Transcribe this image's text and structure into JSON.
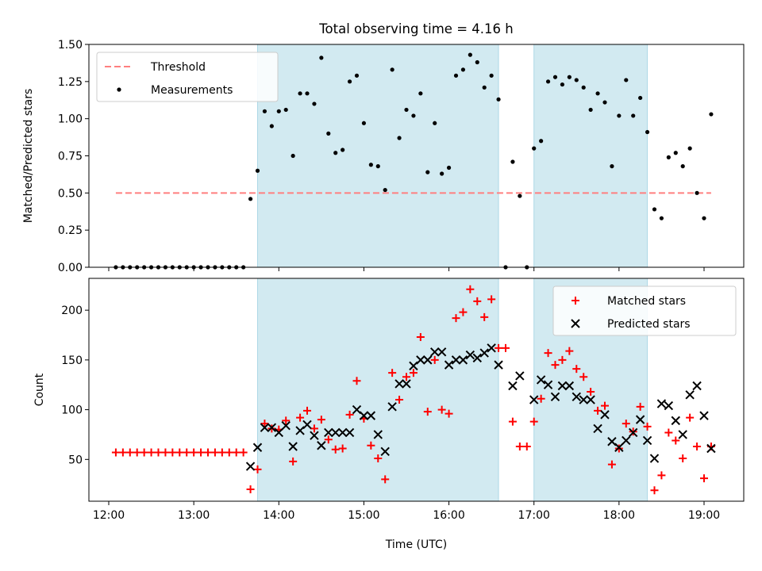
{
  "chart_data": [
    {
      "type": "scatter",
      "title": "Total observing time = 4.16 h",
      "ylabel": "Matched/Predicted stars",
      "xlabel": "",
      "xlim": [
        "11:46",
        "19:28"
      ],
      "ylim": [
        0,
        1.5
      ],
      "yticks": [
        "0.00",
        "0.25",
        "0.50",
        "0.75",
        "1.00",
        "1.25",
        "1.50"
      ],
      "yticks_values": [
        0,
        0.25,
        0.5,
        0.75,
        1.0,
        1.25,
        1.5
      ],
      "xticks": [
        "12:00",
        "13:00",
        "14:00",
        "15:00",
        "16:00",
        "17:00",
        "18:00",
        "19:00"
      ],
      "xticks_visible": false,
      "legend": "top-left",
      "shaded_intervals": [
        [
          "13:45",
          "16:35"
        ],
        [
          "17:00",
          "18:20"
        ]
      ],
      "shade_color": "#add8e6",
      "series": [
        {
          "name": "Threshold",
          "kind": "dashed-line",
          "color": "#ff7f7f",
          "x": [
            "12:05",
            "19:05"
          ],
          "y": [
            0.5,
            0.5
          ]
        },
        {
          "name": "Measurements",
          "kind": "dot",
          "color": "#000000",
          "x": [
            "12:05",
            "12:10",
            "12:15",
            "12:20",
            "12:25",
            "12:30",
            "12:35",
            "12:40",
            "12:45",
            "12:50",
            "12:55",
            "13:00",
            "13:05",
            "13:10",
            "13:15",
            "13:20",
            "13:25",
            "13:30",
            "13:35",
            "13:40",
            "13:45",
            "13:50",
            "13:55",
            "14:00",
            "14:05",
            "14:10",
            "14:15",
            "14:20",
            "14:25",
            "14:30",
            "14:35",
            "14:40",
            "14:45",
            "14:50",
            "14:55",
            "15:00",
            "15:05",
            "15:10",
            "15:15",
            "15:20",
            "15:25",
            "15:30",
            "15:35",
            "15:40",
            "15:45",
            "15:50",
            "15:55",
            "16:00",
            "16:05",
            "16:10",
            "16:15",
            "16:20",
            "16:25",
            "16:30",
            "16:35",
            "16:40",
            "16:45",
            "16:50",
            "16:55",
            "17:00",
            "17:05",
            "17:10",
            "17:15",
            "17:20",
            "17:25",
            "17:30",
            "17:35",
            "17:40",
            "17:45",
            "17:50",
            "17:55",
            "18:00",
            "18:05",
            "18:10",
            "18:15",
            "18:20",
            "18:25",
            "18:30",
            "18:35",
            "18:40",
            "18:45",
            "18:50",
            "18:55",
            "19:00",
            "19:05"
          ],
          "y": [
            0,
            0,
            0,
            0,
            0,
            0,
            0,
            0,
            0,
            0,
            0,
            0,
            0,
            0,
            0,
            0,
            0,
            0,
            0,
            0.46,
            0.65,
            1.05,
            0.95,
            1.05,
            1.06,
            0.75,
            1.17,
            1.17,
            1.1,
            1.41,
            0.9,
            0.77,
            0.79,
            1.25,
            1.29,
            0.97,
            0.69,
            0.68,
            0.52,
            1.33,
            0.87,
            1.06,
            1.02,
            1.17,
            0.64,
            0.97,
            0.63,
            0.67,
            1.29,
            1.33,
            1.43,
            1.38,
            1.21,
            1.29,
            1.13,
            0,
            0.71,
            0.48,
            0,
            0.8,
            0.85,
            1.25,
            1.28,
            1.23,
            1.28,
            1.26,
            1.21,
            1.06,
            1.17,
            1.11,
            0.68,
            1.02,
            1.26,
            1.02,
            1.14,
            0.91,
            0.39,
            0.33,
            0.74,
            0.77,
            0.68,
            0.8,
            0.5,
            0.33,
            1.03
          ]
        }
      ]
    },
    {
      "type": "scatter",
      "title": "",
      "ylabel": "Count",
      "xlabel": "Time (UTC)",
      "xlim": [
        "11:46",
        "19:28"
      ],
      "ylim": [
        8,
        232
      ],
      "yticks": [
        "50",
        "100",
        "150",
        "200"
      ],
      "yticks_values": [
        50,
        100,
        150,
        200
      ],
      "xticks": [
        "12:00",
        "13:00",
        "14:00",
        "15:00",
        "16:00",
        "17:00",
        "18:00",
        "19:00"
      ],
      "legend": "top-right",
      "shaded_intervals": [
        [
          "13:45",
          "16:35"
        ],
        [
          "17:00",
          "18:20"
        ]
      ],
      "shade_color": "#add8e6",
      "series": [
        {
          "name": "Matched stars",
          "kind": "plus",
          "color": "#ff0000",
          "x": [
            "12:05",
            "12:10",
            "12:15",
            "12:20",
            "12:25",
            "12:30",
            "12:35",
            "12:40",
            "12:45",
            "12:50",
            "12:55",
            "13:00",
            "13:05",
            "13:10",
            "13:15",
            "13:20",
            "13:25",
            "13:30",
            "13:35",
            "13:40",
            "13:45",
            "13:50",
            "13:55",
            "14:00",
            "14:05",
            "14:10",
            "14:15",
            "14:20",
            "14:25",
            "14:30",
            "14:35",
            "14:40",
            "14:45",
            "14:50",
            "14:55",
            "15:00",
            "15:05",
            "15:10",
            "15:15",
            "15:20",
            "15:25",
            "15:30",
            "15:35",
            "15:40",
            "15:45",
            "15:50",
            "15:55",
            "16:00",
            "16:05",
            "16:10",
            "16:15",
            "16:20",
            "16:25",
            "16:30",
            "16:35",
            "16:40",
            "16:45",
            "16:50",
            "16:55",
            "17:00",
            "17:05",
            "17:10",
            "17:15",
            "17:20",
            "17:25",
            "17:30",
            "17:35",
            "17:40",
            "17:45",
            "17:50",
            "17:55",
            "18:00",
            "18:05",
            "18:10",
            "18:15",
            "18:20",
            "18:25",
            "18:30",
            "18:35",
            "18:40",
            "18:45",
            "18:50",
            "18:55",
            "19:00",
            "19:05"
          ],
          "y": [
            57,
            57,
            57,
            57,
            57,
            57,
            57,
            57,
            57,
            57,
            57,
            57,
            57,
            57,
            57,
            57,
            57,
            57,
            57,
            20,
            40,
            86,
            81,
            80,
            89,
            48,
            92,
            99,
            81,
            90,
            70,
            60,
            61,
            95,
            129,
            91,
            64,
            51,
            30,
            137,
            110,
            133,
            137,
            173,
            98,
            150,
            100,
            96,
            192,
            198,
            221,
            209,
            193,
            211,
            162,
            162,
            88,
            63,
            63,
            88,
            111,
            157,
            145,
            150,
            159,
            141,
            133,
            118,
            99,
            104,
            45,
            61,
            86,
            78,
            103,
            83,
            19,
            34,
            77,
            69,
            51,
            92,
            63,
            31,
            63
          ]
        },
        {
          "name": "Predicted stars",
          "kind": "x",
          "color": "#000000",
          "x": [
            "13:40",
            "13:45",
            "13:50",
            "13:55",
            "14:00",
            "14:05",
            "14:10",
            "14:15",
            "14:20",
            "14:25",
            "14:30",
            "14:35",
            "14:40",
            "14:45",
            "14:50",
            "14:55",
            "15:00",
            "15:05",
            "15:10",
            "15:15",
            "15:20",
            "15:25",
            "15:30",
            "15:35",
            "15:40",
            "15:45",
            "15:50",
            "15:55",
            "16:00",
            "16:05",
            "16:10",
            "16:15",
            "16:20",
            "16:25",
            "16:30",
            "16:35",
            "16:40",
            "16:45",
            "16:50",
            "16:55",
            "17:00",
            "17:05",
            "17:10",
            "17:15",
            "17:20",
            "17:25",
            "17:30",
            "17:35",
            "17:40",
            "17:45",
            "17:50",
            "17:55",
            "18:00",
            "18:05",
            "18:10",
            "18:15",
            "18:20",
            "18:25",
            "18:30",
            "18:35",
            "18:40",
            "18:45",
            "18:50",
            "18:55",
            "19:00",
            "19:05"
          ],
          "y": [
            43,
            62,
            82,
            82,
            77,
            84,
            63,
            79,
            85,
            74,
            64,
            77,
            77,
            77,
            77,
            100,
            94,
            94,
            75,
            58,
            103,
            126,
            126,
            144,
            150,
            150,
            158,
            158,
            145,
            150,
            150,
            155,
            152,
            157,
            162,
            145,
            null,
            124,
            134,
            null,
            110,
            130,
            125,
            113,
            124,
            124,
            113,
            110,
            110,
            81,
            95,
            68,
            62,
            69,
            77,
            90,
            69,
            51,
            106,
            104,
            89,
            75,
            115,
            124,
            94,
            61
          ]
        }
      ]
    }
  ]
}
